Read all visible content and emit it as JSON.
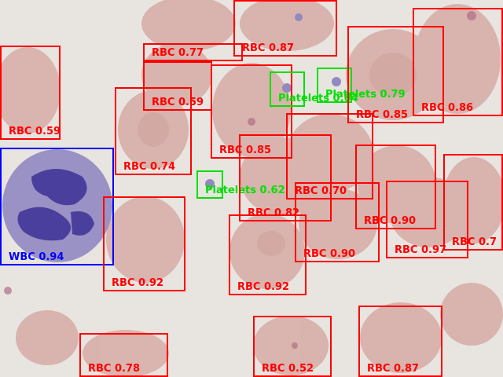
{
  "image": {
    "kind": "blood smear micrograph with object detection boxes"
  },
  "colors": {
    "RBC": "#ff0000",
    "WBC": "#0000ff",
    "Platelets": "#00e000"
  },
  "detections": [
    {
      "cls": "RBC",
      "label": "RBC 0.59"
    },
    {
      "cls": "WBC",
      "label": "WBC 0.94"
    },
    {
      "cls": "RBC",
      "label": "RBC 0.77"
    },
    {
      "cls": "RBC",
      "label": "RBC 0.87"
    },
    {
      "cls": "RBC",
      "label": "RBC 0.59"
    },
    {
      "cls": "RBC",
      "label": "RBC 0.74"
    },
    {
      "cls": "RBC",
      "label": "RBC 0.85"
    },
    {
      "cls": "Platelets",
      "label": "Platelets 0.64"
    },
    {
      "cls": "Platelets",
      "label": "Platelets 0.79"
    },
    {
      "cls": "RBC",
      "label": "RBC 0.85"
    },
    {
      "cls": "RBC",
      "label": "RBC 0.86"
    },
    {
      "cls": "Platelets",
      "label": "Platelets 0.62"
    },
    {
      "cls": "RBC",
      "label": "RBC 0.70"
    },
    {
      "cls": "RBC",
      "label": "RBC 0.82"
    },
    {
      "cls": "RBC",
      "label": "RBC 0.90"
    },
    {
      "cls": "RBC",
      "label": "RBC 0.7"
    },
    {
      "cls": "RBC",
      "label": "RBC 0.97"
    },
    {
      "cls": "RBC",
      "label": "RBC 0.92"
    },
    {
      "cls": "RBC",
      "label": "RBC 0.92"
    },
    {
      "cls": "RBC",
      "label": "RBC 0.90"
    },
    {
      "cls": "RBC",
      "label": "RBC 0.78"
    },
    {
      "cls": "RBC",
      "label": "RBC 0.52"
    },
    {
      "cls": "RBC",
      "label": "RBC 0.87"
    }
  ]
}
